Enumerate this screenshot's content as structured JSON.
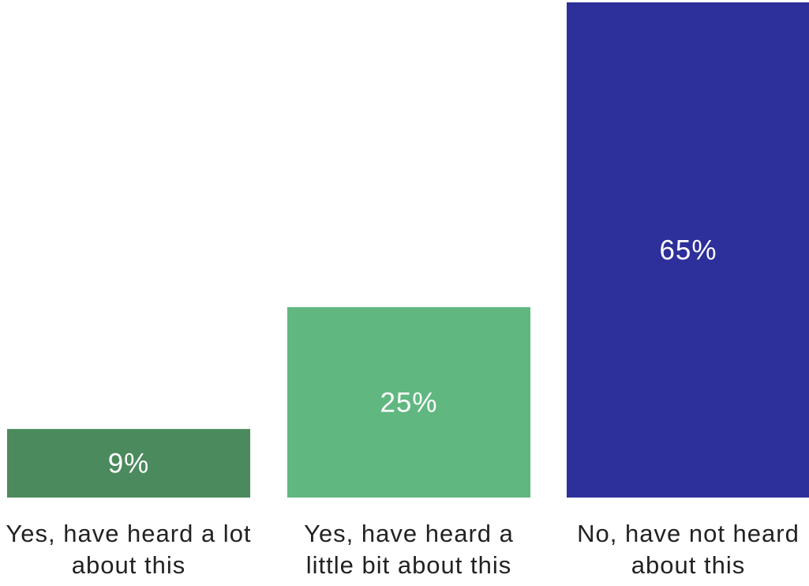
{
  "chart_data": {
    "type": "bar",
    "categories": [
      [
        "Yes, have heard a lot",
        "about this"
      ],
      [
        "Yes, have heard a",
        "little bit about this"
      ],
      [
        "No, have not heard",
        "about this"
      ]
    ],
    "values": [
      9,
      25,
      65
    ],
    "value_labels": [
      "9%",
      "25%",
      "65%"
    ],
    "colors": [
      "#4a8a5c",
      "#61b780",
      "#2d2f9a"
    ],
    "title": "",
    "xlabel": "",
    "ylabel": "",
    "ylim": [
      0,
      65
    ],
    "grid": false,
    "legend": "none"
  }
}
